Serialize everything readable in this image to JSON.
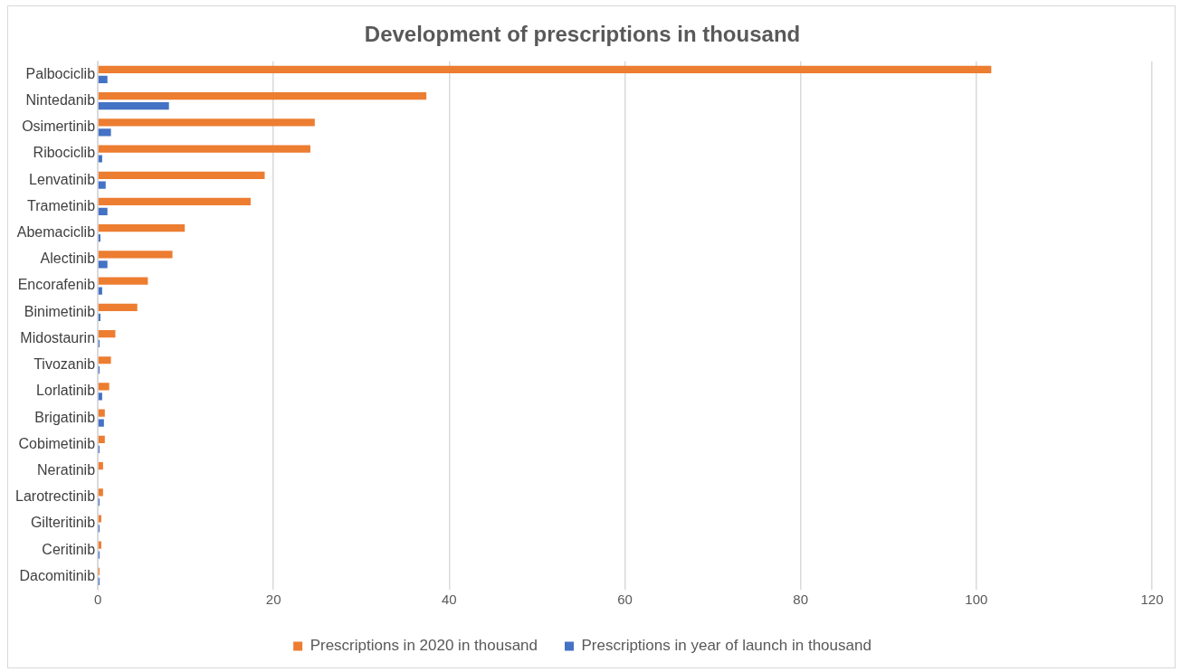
{
  "chart_data": {
    "type": "bar",
    "orientation": "horizontal",
    "title": "Development of prescriptions in thousand",
    "categories": [
      "Palbociclib",
      "Nintedanib",
      "Osimertinib",
      "Ribociclib",
      "Lenvatinib",
      "Trametinib",
      "Abemaciclib",
      "Alectinib",
      "Encorafenib",
      "Binimetinib",
      "Midostaurin",
      "Tivozanib",
      "Lorlatinib",
      "Brigatinib",
      "Cobimetinib",
      "Neratinib",
      "Larotrectinib",
      "Gilteritinib",
      "Ceritinib",
      "Dacomitinib"
    ],
    "series": [
      {
        "name": "Prescriptions in 2020 in thousand",
        "color": "#ed7d31",
        "values": [
          101.7,
          37.4,
          24.7,
          24.2,
          19.0,
          17.4,
          9.9,
          8.5,
          5.7,
          4.5,
          2.0,
          1.5,
          1.3,
          0.8,
          0.8,
          0.6,
          0.6,
          0.4,
          0.4,
          0.2
        ]
      },
      {
        "name": "Prescriptions in year of launch in thousand",
        "color": "#4472c4",
        "values": [
          1.1,
          8.1,
          1.5,
          0.5,
          0.9,
          1.1,
          0.3,
          1.1,
          0.5,
          0.3,
          0.2,
          0.2,
          0.5,
          0.7,
          0.2,
          0,
          0.2,
          0.2,
          0.2,
          0.2
        ]
      }
    ],
    "xlim": [
      0,
      120
    ],
    "xticks": [
      0,
      20,
      40,
      60,
      80,
      100,
      120
    ],
    "grid": "x",
    "legend": "bottom"
  }
}
